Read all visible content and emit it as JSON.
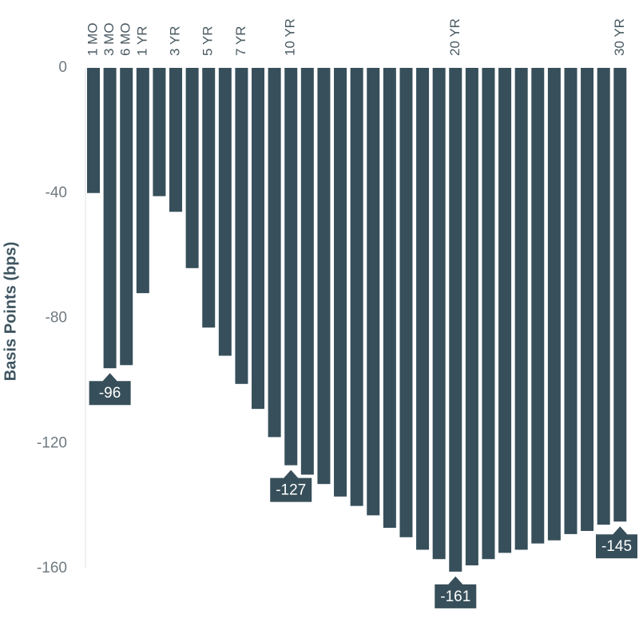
{
  "chart_data": {
    "type": "bar",
    "y_label": "Basis Points (bps)",
    "categories": [
      "1 MO",
      "3 MO",
      "6 MO",
      "1 YR",
      null,
      "3 YR",
      null,
      "5 YR",
      null,
      "7 YR",
      null,
      null,
      "10 YR",
      null,
      null,
      null,
      null,
      null,
      null,
      null,
      null,
      null,
      "20 YR",
      null,
      null,
      null,
      null,
      null,
      null,
      null,
      null,
      null,
      "30 YR"
    ],
    "values": [
      -40,
      -96,
      -95,
      -72,
      -41,
      -46,
      -64,
      -83,
      -92,
      -101,
      -109,
      -118,
      -127,
      -130,
      -133,
      -137,
      -140,
      -143,
      -147,
      -150,
      -154,
      -157,
      -161,
      -159,
      -157,
      -155,
      -154,
      -152,
      -151,
      -149,
      -148,
      -146,
      -145
    ],
    "value_labels": [
      null,
      "-96",
      null,
      null,
      null,
      null,
      null,
      null,
      null,
      null,
      null,
      null,
      "-127",
      null,
      null,
      null,
      null,
      null,
      null,
      null,
      null,
      null,
      "-161",
      null,
      null,
      null,
      null,
      null,
      null,
      null,
      null,
      null,
      "-145"
    ],
    "color": "#374f5a",
    "ylim": [
      0,
      -160
    ],
    "yticks": [
      0,
      -40,
      -80,
      -120,
      -160
    ]
  }
}
